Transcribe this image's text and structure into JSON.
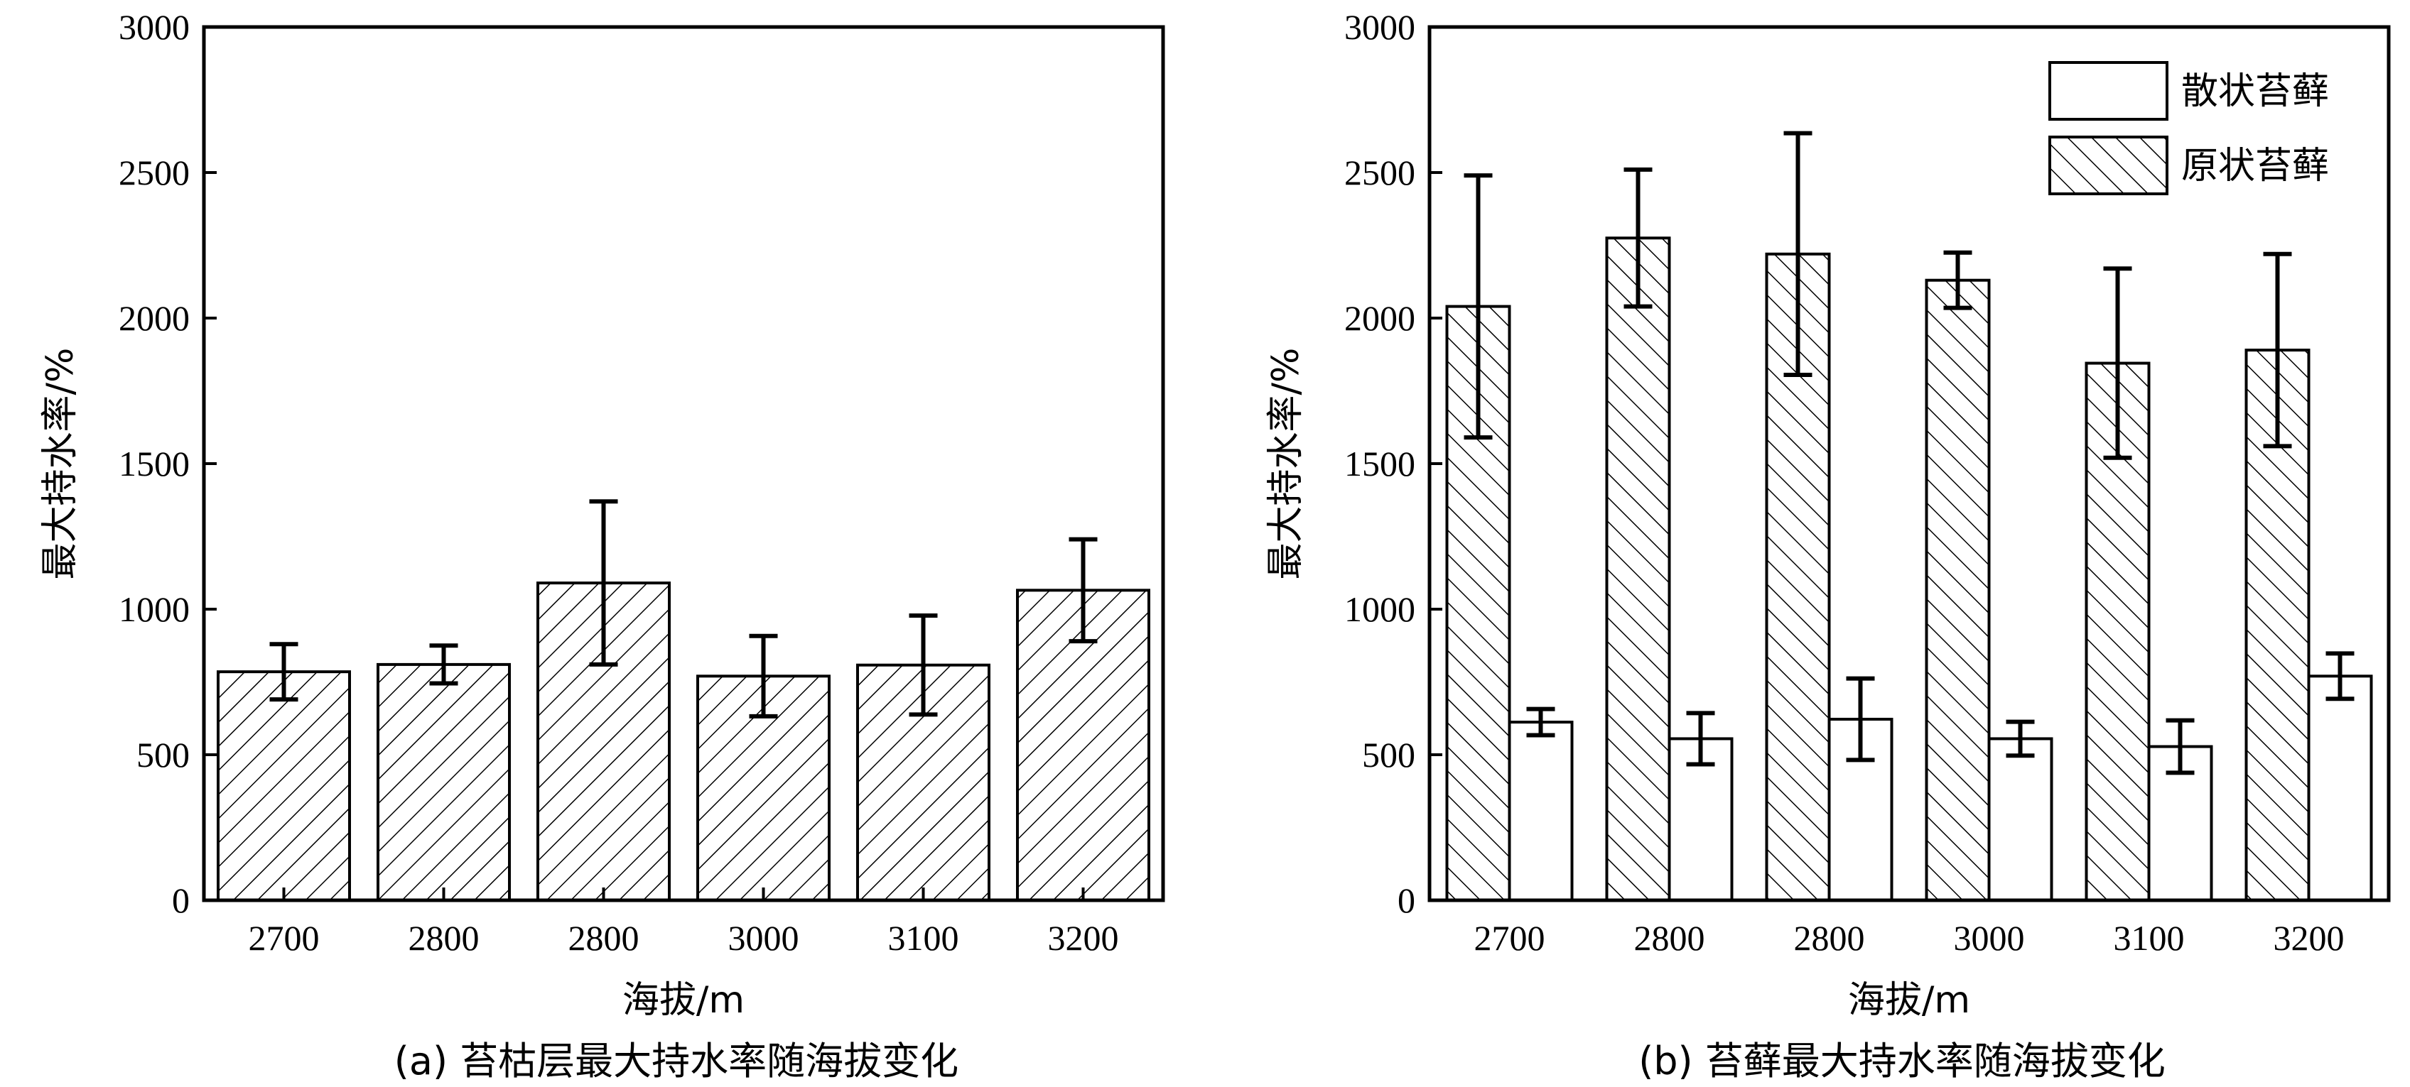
{
  "colors": {
    "axis": "#000000",
    "bar_fill": "#ffffff",
    "hatch": "#000000"
  },
  "chart_data": [
    {
      "type": "bar",
      "caption": "(a) 苔枯层最大持水率随海拔变化",
      "xlabel": "海拔/m",
      "ylabel": "最大持水率/%",
      "ylim": [
        0,
        3000
      ],
      "yticks": [
        "0",
        "500",
        "1000",
        "1500",
        "2000",
        "2500",
        "3000"
      ],
      "categories": [
        "2700",
        "2800",
        "2800",
        "3000",
        "3100",
        "3200"
      ],
      "series": [
        {
          "pattern": "hatch-forward",
          "values": [
            785,
            810,
            1090,
            770,
            808,
            1065
          ],
          "errors": [
            95,
            65,
            280,
            138,
            170,
            175
          ]
        }
      ],
      "legend": null
    },
    {
      "type": "bar",
      "caption": "(b) 苔藓最大持水率随海拔变化",
      "xlabel": "海拔/m",
      "ylabel": "最大持水率/%",
      "ylim": [
        0,
        3000
      ],
      "yticks": [
        "0",
        "500",
        "1000",
        "1500",
        "2000",
        "2500",
        "3000"
      ],
      "categories": [
        "2700",
        "2800",
        "2800",
        "3000",
        "3100",
        "3200"
      ],
      "series": [
        {
          "name": "原状苔藓",
          "pattern": "hatch-backward",
          "values": [
            2040,
            2275,
            2220,
            2130,
            1845,
            1890
          ],
          "errors": [
            450,
            235,
            415,
            95,
            325,
            330
          ]
        },
        {
          "name": "散状苔藓",
          "pattern": "plain",
          "values": [
            612,
            555,
            622,
            555,
            528,
            770
          ],
          "errors": [
            45,
            88,
            140,
            58,
            90,
            78
          ]
        }
      ],
      "legend": {
        "placement": "top-right",
        "entries": [
          {
            "label": "散状苔藓",
            "pattern": "plain"
          },
          {
            "label": "原状苔藓",
            "pattern": "hatch-backward"
          }
        ]
      }
    }
  ]
}
